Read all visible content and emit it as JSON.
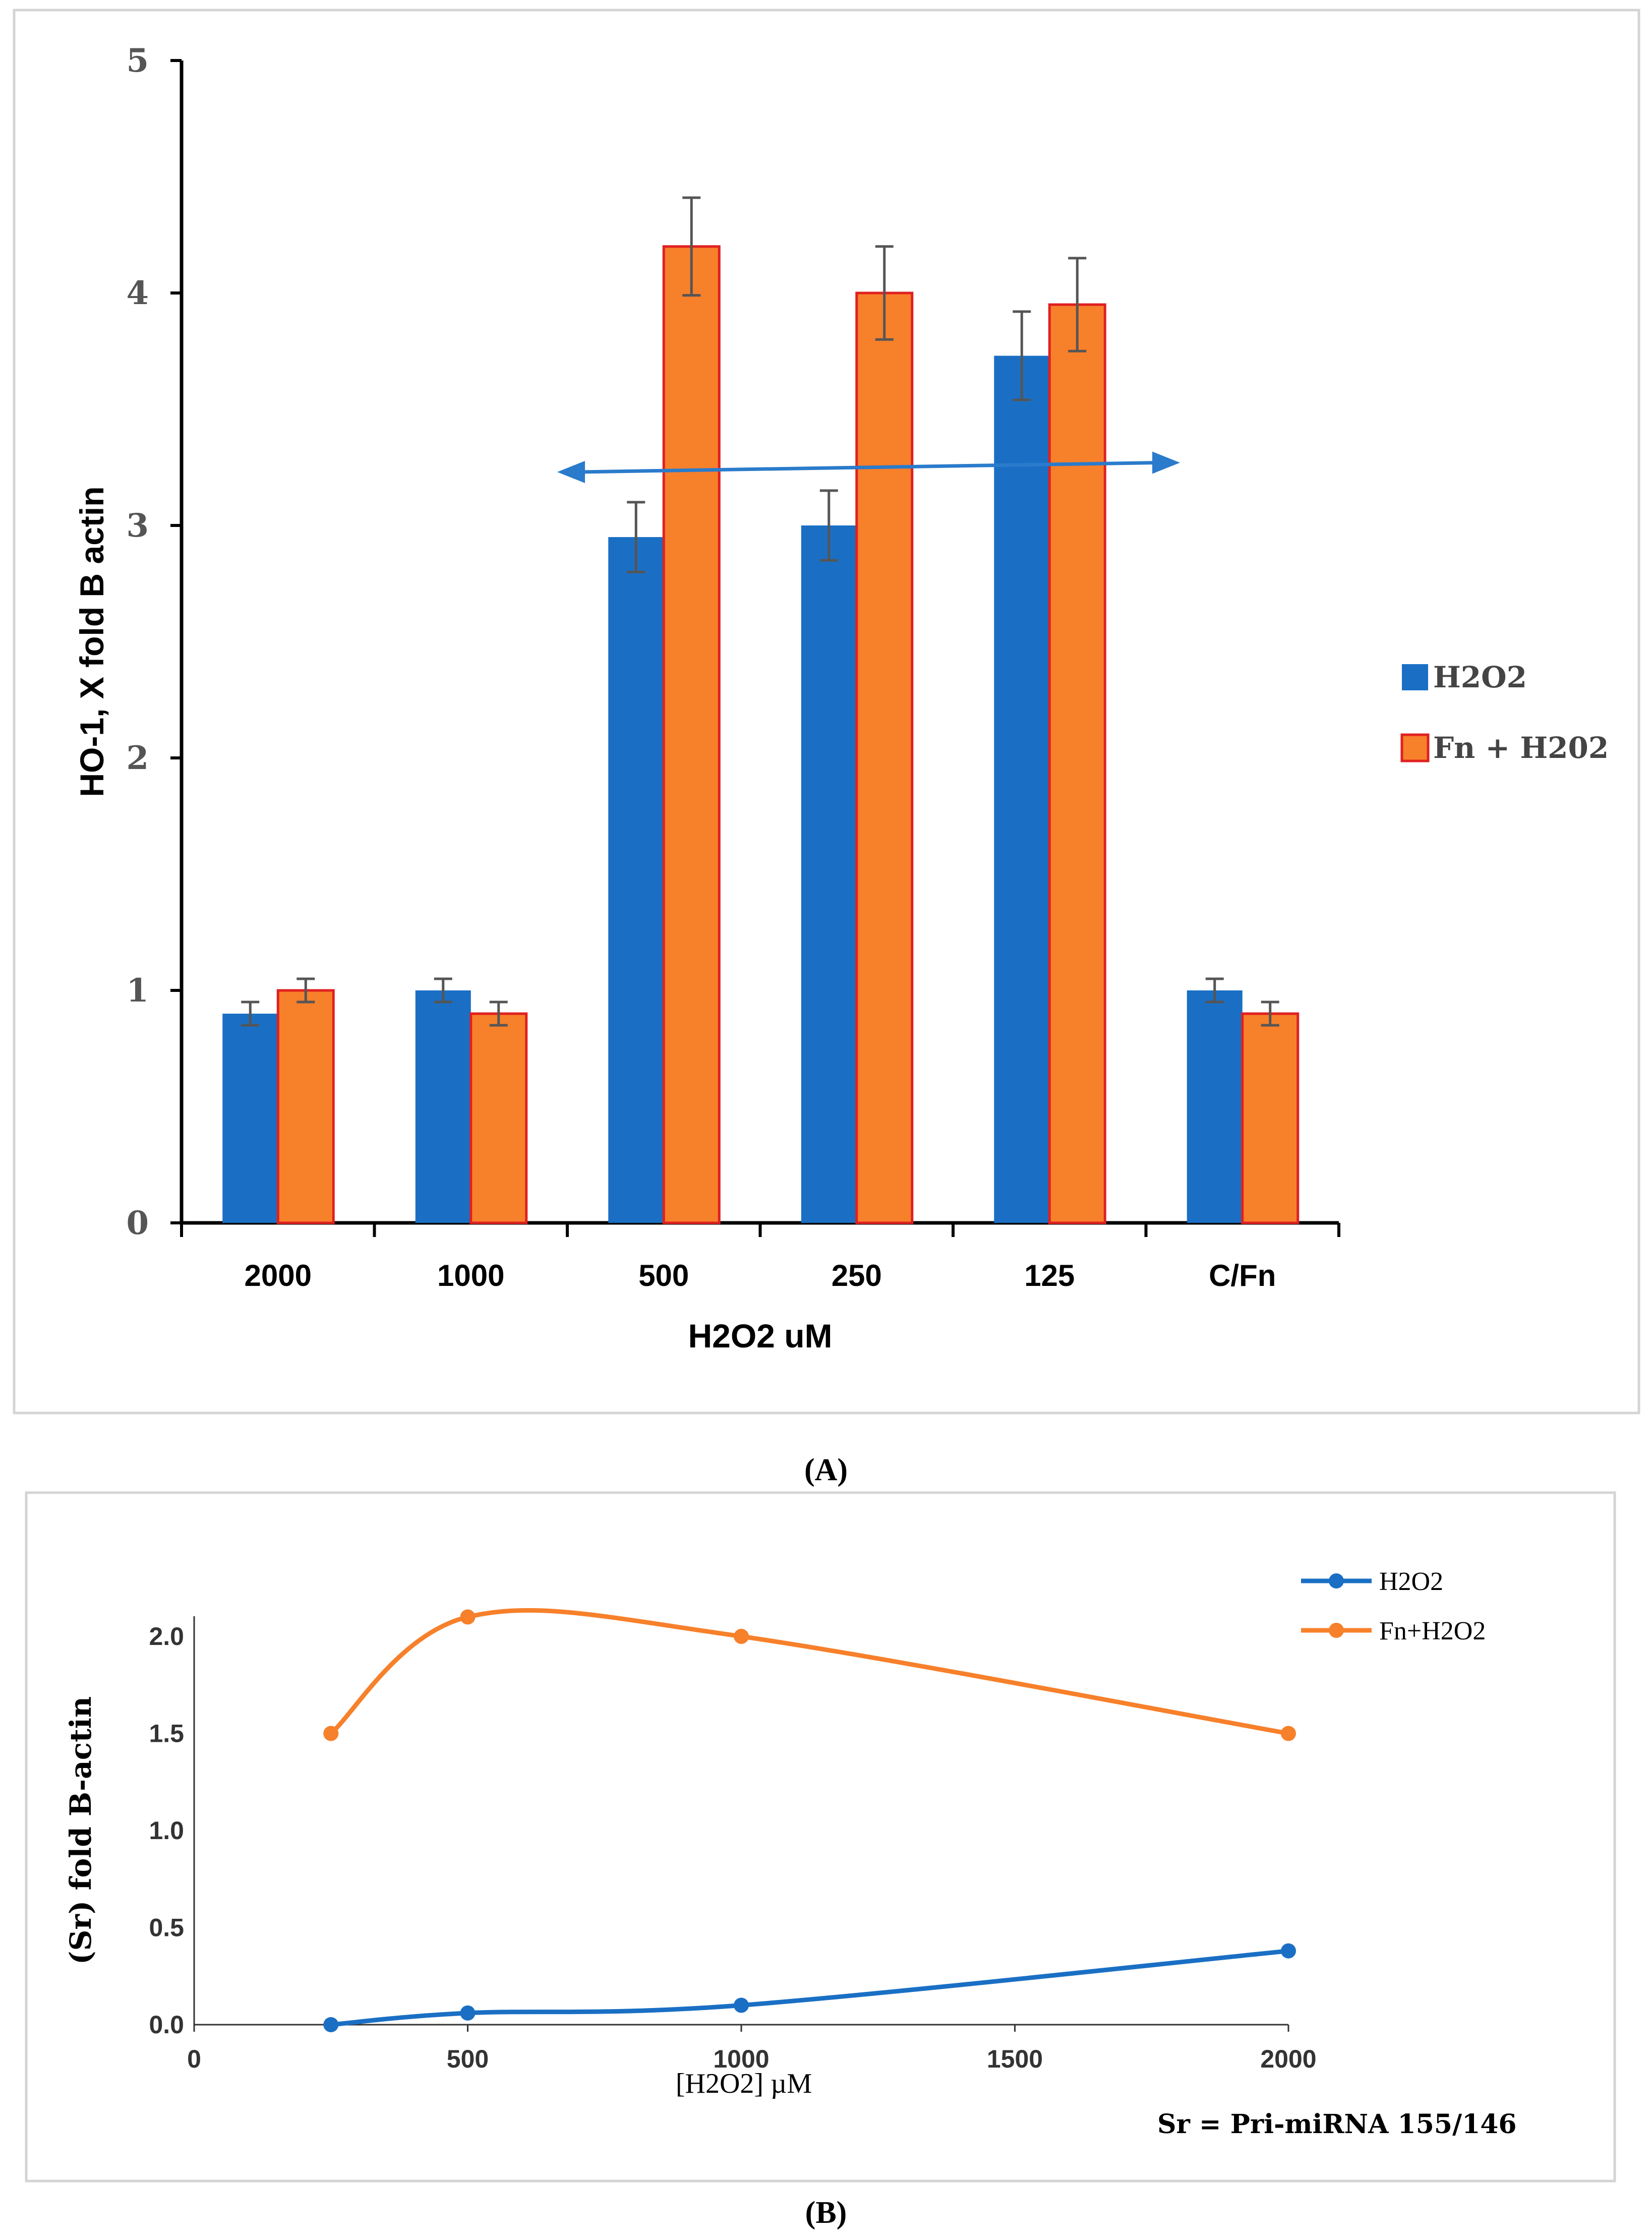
{
  "colors": {
    "h2o2": "#1a6fc4",
    "fn": "#f7802b",
    "fn_border": "#e02020",
    "arrow": "#2a7bcb",
    "errbar": "#555555",
    "frame": "#d4d4d4",
    "axis": "#000000"
  },
  "panel_a": {
    "label": "(A)",
    "legend": [
      "H2O2",
      "Fn + H202"
    ]
  },
  "panel_b": {
    "label": "(B)",
    "footnote": "Sr =  Pri-miRNA 155/146",
    "legend": [
      "H2O2",
      "Fn+H2O2"
    ]
  },
  "chart_data": [
    {
      "type": "bar",
      "title": "",
      "xlabel": "H2O2 uM",
      "ylabel": "HO-1, X fold  B actin",
      "categories": [
        "2000",
        "1000",
        "500",
        "250",
        "125",
        "C/Fn"
      ],
      "ylim": [
        0,
        5
      ],
      "yticks": [
        0,
        1,
        2,
        3,
        4,
        5
      ],
      "series": [
        {
          "name": "H2O2",
          "values": [
            0.9,
            1.0,
            2.95,
            3.0,
            3.73,
            1.0
          ],
          "errors": [
            0.05,
            0.05,
            0.15,
            0.15,
            0.19,
            0.05
          ]
        },
        {
          "name": "Fn + H202",
          "values": [
            1.0,
            0.9,
            4.2,
            4.0,
            3.95,
            0.9
          ],
          "errors": [
            0.05,
            0.05,
            0.21,
            0.2,
            0.2,
            0.05
          ]
        }
      ],
      "annotations": [
        "double-headed arrow across 500–125 at ~3.25"
      ]
    },
    {
      "type": "line",
      "title": "",
      "xlabel": "[H2O2] µM",
      "ylabel": "(Sr)  fold B-actin",
      "xlim": [
        0,
        2000
      ],
      "xticks": [
        0,
        500,
        1000,
        1500,
        2000
      ],
      "ylim": [
        0,
        2.0
      ],
      "yticks": [
        "0.0",
        "0.5",
        "1.0",
        "1.5",
        "2.0"
      ],
      "series": [
        {
          "name": "H2O2",
          "x": [
            250,
            500,
            1000,
            2000
          ],
          "y": [
            0.0,
            0.06,
            0.1,
            0.38
          ]
        },
        {
          "name": "Fn+H2O2",
          "x": [
            250,
            500,
            1000,
            2000
          ],
          "y": [
            1.5,
            2.1,
            2.0,
            1.5
          ]
        }
      ]
    }
  ]
}
